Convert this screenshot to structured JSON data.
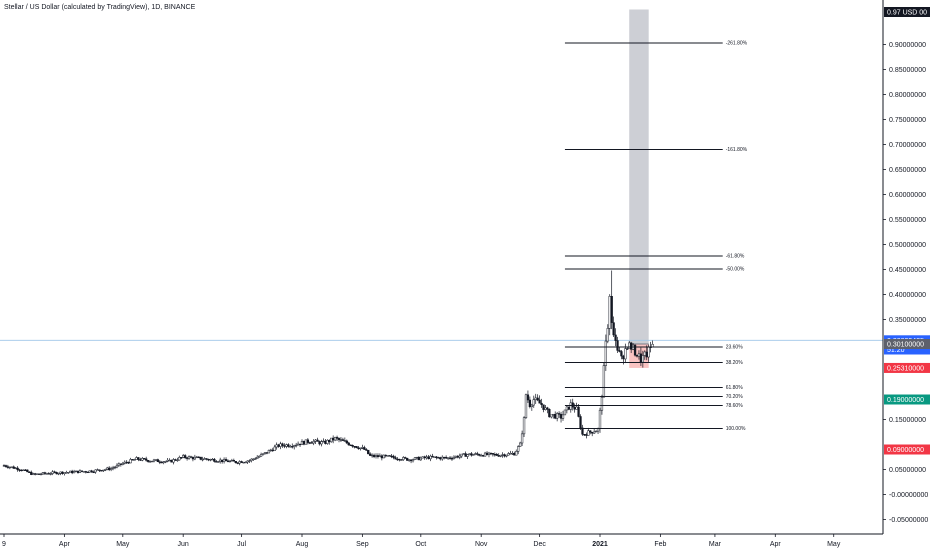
{
  "header": {
    "title": "Stellar / US Dollar (calculated by TradingView), 1D, BINANCE"
  },
  "chart_data": {
    "type": "candlestick",
    "title": "Stellar / US Dollar (calculated by TradingView), 1D, BINANCE",
    "ylim": [
      -0.08,
      0.97
    ],
    "y_ticks": [
      {
        "value": 0.9,
        "label": "0.90000000"
      },
      {
        "value": 0.85,
        "label": "0.85000000"
      },
      {
        "value": 0.8,
        "label": "0.80000000"
      },
      {
        "value": 0.75,
        "label": "0.75000000"
      },
      {
        "value": 0.7,
        "label": "0.70000000"
      },
      {
        "value": 0.65,
        "label": "0.65000000"
      },
      {
        "value": 0.6,
        "label": "0.60000000"
      },
      {
        "value": 0.55,
        "label": "0.55000000"
      },
      {
        "value": 0.5,
        "label": "0.50000000"
      },
      {
        "value": 0.45,
        "label": "0.45000000"
      },
      {
        "value": 0.4,
        "label": "0.40000000"
      },
      {
        "value": 0.35,
        "label": "0.35000000"
      },
      {
        "value": 0.15,
        "label": "0.15000000"
      },
      {
        "value": 0.05,
        "label": "0.05000000"
      },
      {
        "value": 0.0,
        "label": "-0.00000000"
      },
      {
        "value": -0.05,
        "label": "-0.05000000"
      }
    ],
    "x_ticks": [
      {
        "date": "2020-03-01",
        "label": "9"
      },
      {
        "date": "2020-04-01",
        "label": "Apr"
      },
      {
        "date": "2020-05-01",
        "label": "May"
      },
      {
        "date": "2020-06-01",
        "label": "Jun"
      },
      {
        "date": "2020-07-01",
        "label": "Jul"
      },
      {
        "date": "2020-08-01",
        "label": "Aug"
      },
      {
        "date": "2020-09-01",
        "label": "Sep"
      },
      {
        "date": "2020-10-01",
        "label": "Oct"
      },
      {
        "date": "2020-11-01",
        "label": "Nov"
      },
      {
        "date": "2020-12-01",
        "label": "Dec"
      },
      {
        "date": "2021-01-01",
        "label": "2021"
      },
      {
        "date": "2021-02-01",
        "label": "Feb"
      },
      {
        "date": "2021-03-01",
        "label": "Mar"
      },
      {
        "date": "2021-04-01",
        "label": "Apr"
      },
      {
        "date": "2021-05-01",
        "label": "May"
      }
    ],
    "x_range": [
      "2020-03-01",
      "2021-05-22"
    ],
    "price_series": [
      [
        "2020-03-01",
        0.058
      ],
      [
        "2020-03-10",
        0.05
      ],
      [
        "2020-03-16",
        0.04
      ],
      [
        "2020-03-25",
        0.043
      ],
      [
        "2020-04-05",
        0.045
      ],
      [
        "2020-04-15",
        0.047
      ],
      [
        "2020-04-25",
        0.052
      ],
      [
        "2020-05-01",
        0.062
      ],
      [
        "2020-05-08",
        0.071
      ],
      [
        "2020-05-15",
        0.068
      ],
      [
        "2020-05-25",
        0.066
      ],
      [
        "2020-06-01",
        0.075
      ],
      [
        "2020-06-10",
        0.072
      ],
      [
        "2020-06-20",
        0.068
      ],
      [
        "2020-06-28",
        0.065
      ],
      [
        "2020-07-05",
        0.068
      ],
      [
        "2020-07-12",
        0.08
      ],
      [
        "2020-07-20",
        0.098
      ],
      [
        "2020-07-28",
        0.1
      ],
      [
        "2020-08-05",
        0.107
      ],
      [
        "2020-08-12",
        0.103
      ],
      [
        "2020-08-18",
        0.112
      ],
      [
        "2020-08-25",
        0.102
      ],
      [
        "2020-09-02",
        0.09
      ],
      [
        "2020-09-05",
        0.077
      ],
      [
        "2020-09-15",
        0.075
      ],
      [
        "2020-09-25",
        0.07
      ],
      [
        "2020-10-05",
        0.074
      ],
      [
        "2020-10-15",
        0.073
      ],
      [
        "2020-10-25",
        0.08
      ],
      [
        "2020-11-01",
        0.08
      ],
      [
        "2020-11-10",
        0.079
      ],
      [
        "2020-11-18",
        0.082
      ],
      [
        "2020-11-21",
        0.1
      ],
      [
        "2020-11-23",
        0.15
      ],
      [
        "2020-11-24",
        0.2
      ],
      [
        "2020-11-26",
        0.18
      ],
      [
        "2020-11-28",
        0.19
      ],
      [
        "2020-12-02",
        0.18
      ],
      [
        "2020-12-06",
        0.16
      ],
      [
        "2020-12-12",
        0.155
      ],
      [
        "2020-12-17",
        0.18
      ],
      [
        "2020-12-20",
        0.17
      ],
      [
        "2020-12-23",
        0.12
      ],
      [
        "2020-12-27",
        0.125
      ],
      [
        "2020-12-31",
        0.13
      ],
      [
        "2021-01-02",
        0.2
      ],
      [
        "2021-01-04",
        0.3
      ],
      [
        "2021-01-06",
        0.38
      ],
      [
        "2021-01-09",
        0.3
      ],
      [
        "2021-01-12",
        0.27
      ],
      [
        "2021-01-15",
        0.3
      ],
      [
        "2021-01-18",
        0.29
      ],
      [
        "2021-01-22",
        0.27
      ],
      [
        "2021-01-25",
        0.28
      ],
      [
        "2021-01-28",
        0.301
      ]
    ],
    "fib_levels": [
      {
        "label": "-261.80%",
        "value": 0.903
      },
      {
        "label": "-161.80%",
        "value": 0.69
      },
      {
        "label": "-61.80%",
        "value": 0.477
      },
      {
        "label": "-50.00%",
        "value": 0.451
      },
      {
        "label": "23.60%",
        "value": 0.295
      },
      {
        "label": "38.20%",
        "value": 0.264
      },
      {
        "label": "61.80%",
        "value": 0.214
      },
      {
        "label": "70.20%",
        "value": 0.196
      },
      {
        "label": "78.60%",
        "value": 0.178
      },
      {
        "label": "100.00%",
        "value": 0.132
      }
    ],
    "fib_range": [
      "2020-12-14",
      "2021-03-05"
    ],
    "position_box": {
      "from": "2021-01-16",
      "to": "2021-01-26",
      "entry": 0.301,
      "target": 0.97,
      "stop": 0.2531,
      "target_color": "#b2b5be",
      "stop_color": "#f7a9a8"
    },
    "crosshair_price": 0.3084,
    "price_badges": [
      {
        "label": "0.97 USD 00",
        "value": 0.965,
        "color": "#131722"
      },
      {
        "label": "0.30839435",
        "value": 0.3084,
        "color": "#2962ff"
      },
      {
        "label": "51:20",
        "value": 0.29,
        "color": "#2962ff"
      },
      {
        "label": "0.30100000",
        "value": 0.301,
        "color": "#5d606b"
      },
      {
        "label": "0.25310000",
        "value": 0.2531,
        "color": "#f23645"
      },
      {
        "label": "0.19000000",
        "value": 0.19,
        "color": "#089981"
      },
      {
        "label": "0.09000000",
        "value": 0.09,
        "color": "#f23645"
      }
    ],
    "colors": {
      "up": "#131722",
      "down": "#131722",
      "fib_line": "#131722",
      "axis_text": "#131722",
      "crosshair": "#9fc5e8"
    },
    "grid": false
  }
}
